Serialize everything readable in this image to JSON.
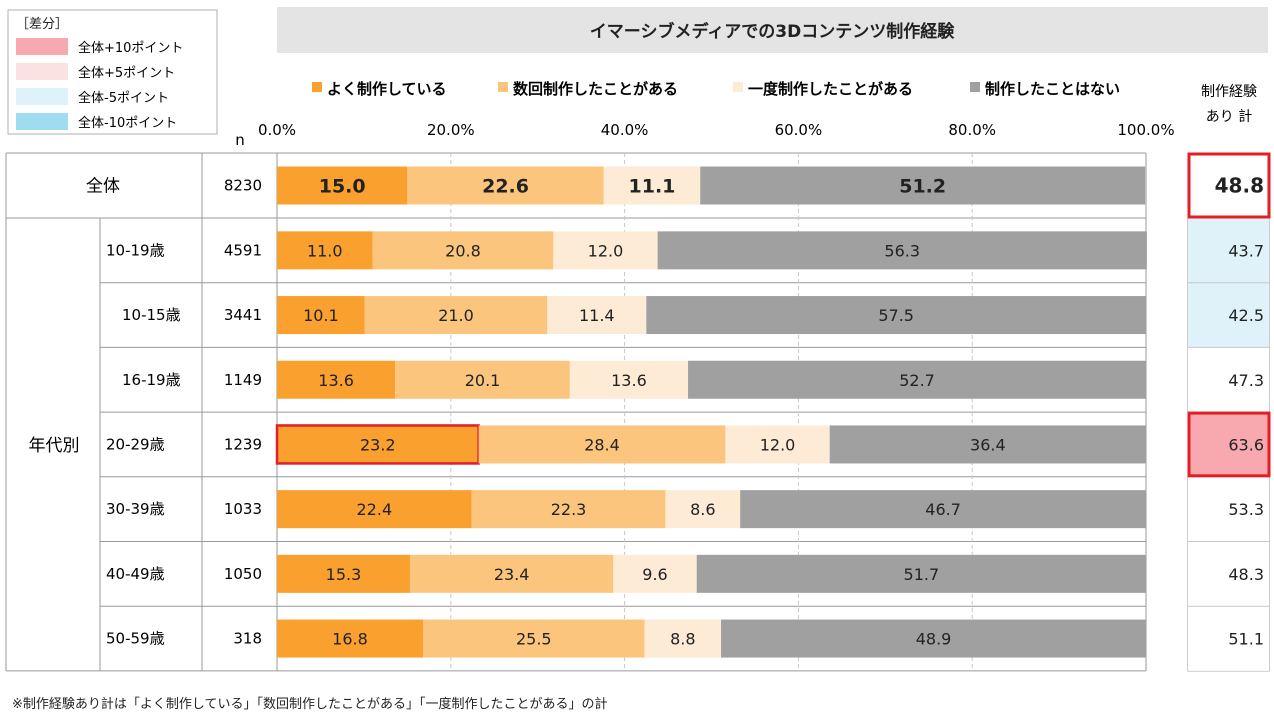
{
  "legend_box": {
    "title": "［差分］",
    "items": [
      {
        "label": "全体+10ポイント",
        "color": "#f8a9b0"
      },
      {
        "label": "全体+5ポイント",
        "color": "#fce1e3"
      },
      {
        "label": "全体-5ポイント",
        "color": "#dff2fa"
      },
      {
        "label": "全体-10ポイント",
        "color": "#9fdcf0"
      }
    ]
  },
  "footnote": "※制作経験あり計は「よく制作している」「数回制作したことがある」「一度制作したことがある」の計",
  "chart_data": {
    "type": "bar",
    "orientation": "horizontal",
    "stacked": true,
    "title": "イマーシブメディアでの3Dコンテンツ制作経験",
    "n_label": "n",
    "xlim": [
      0,
      100
    ],
    "x_ticks": [
      "0.0%",
      "20.0%",
      "40.0%",
      "60.0%",
      "80.0%",
      "100.0%"
    ],
    "series": [
      {
        "name": "よく制作している",
        "color": "#f9a02e"
      },
      {
        "name": "数回制作したことがある",
        "color": "#fcc57e"
      },
      {
        "name": "一度制作したことがある",
        "color": "#fdebd6"
      },
      {
        "name": "制作したことはない",
        "color": "#a0a0a0"
      }
    ],
    "group_label": "年代別",
    "total_header": "制作経験\nあり 計",
    "rows": [
      {
        "label": "全体",
        "n": "8230",
        "values": [
          15.0,
          22.6,
          11.1,
          51.2
        ],
        "labels": [
          "15.0",
          "22.6",
          "11.1",
          "51.2"
        ],
        "total": "48.8",
        "diff": "none",
        "overall": true,
        "highlight_total": true
      },
      {
        "label": "10-19歳",
        "n": "4591",
        "values": [
          11.0,
          20.8,
          12.0,
          56.3
        ],
        "labels": [
          "11.0",
          "20.8",
          "12.0",
          "56.3"
        ],
        "total": "43.7",
        "diff": "minus5",
        "indent": 0
      },
      {
        "label": "10-15歳",
        "n": "3441",
        "values": [
          10.1,
          21.0,
          11.4,
          57.5
        ],
        "labels": [
          "10.1",
          "21.0",
          "11.4",
          "57.5"
        ],
        "total": "42.5",
        "diff": "minus5",
        "indent": 1
      },
      {
        "label": "16-19歳",
        "n": "1149",
        "values": [
          13.6,
          20.1,
          13.6,
          52.7
        ],
        "labels": [
          "13.6",
          "20.1",
          "13.6",
          "52.7"
        ],
        "total": "47.3",
        "diff": "none",
        "indent": 1
      },
      {
        "label": "20-29歳",
        "n": "1239",
        "values": [
          23.2,
          28.4,
          12.0,
          36.4
        ],
        "labels": [
          "23.2",
          "28.4",
          "12.0",
          "36.4"
        ],
        "total": "63.6",
        "diff": "plus10",
        "indent": 0,
        "highlight_first": true,
        "highlight_total": true
      },
      {
        "label": "30-39歳",
        "n": "1033",
        "values": [
          22.4,
          22.3,
          8.6,
          46.7
        ],
        "labels": [
          "22.4",
          "22.3",
          "8.6",
          "46.7"
        ],
        "total": "53.3",
        "diff": "none",
        "indent": 0
      },
      {
        "label": "40-49歳",
        "n": "1050",
        "values": [
          15.3,
          23.4,
          9.6,
          51.7
        ],
        "labels": [
          "15.3",
          "23.4",
          "9.6",
          "51.7"
        ],
        "total": "48.3",
        "diff": "none",
        "indent": 0
      },
      {
        "label": "50-59歳",
        "n": "318",
        "values": [
          16.8,
          25.5,
          8.8,
          48.9
        ],
        "labels": [
          "16.8",
          "25.5",
          "8.8",
          "48.9"
        ],
        "total": "51.1",
        "diff": "none",
        "indent": 0
      }
    ]
  }
}
